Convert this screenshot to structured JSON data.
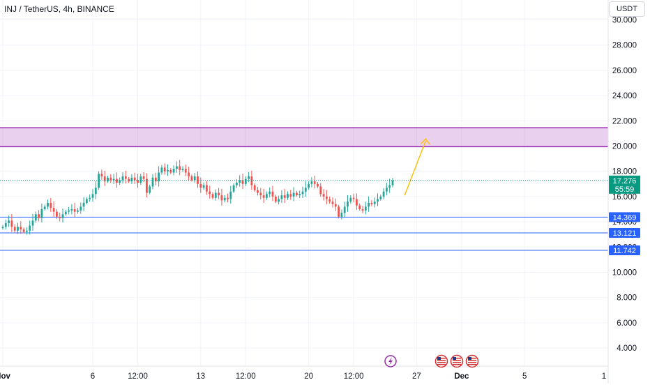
{
  "header": {
    "title": "INJ / TetherUS, 4h, BINANCE",
    "currency": "USDT"
  },
  "price_label": {
    "price": "17.276",
    "countdown": "55:59"
  },
  "chart_data": {
    "type": "candlestick",
    "symbol": "INJ / TetherUS",
    "interval": "4h",
    "exchange": "BINANCE",
    "y_axis": {
      "range": [
        3.0,
        30.5
      ],
      "ticks": [
        "30.000",
        "28.000",
        "26.000",
        "24.000",
        "22.000",
        "20.000",
        "18.000",
        "16.000",
        "14.000",
        "12.000",
        "10.000",
        "8.000",
        "6.000",
        "4.000"
      ],
      "tick_values": [
        30,
        28,
        26,
        24,
        22,
        20,
        18,
        16,
        14,
        12,
        10,
        8,
        6,
        4
      ]
    },
    "x_axis": {
      "labels": [
        "Nov",
        "6",
        "12:00",
        "13",
        "12:00",
        "20",
        "12:00",
        "27",
        "Dec",
        "5",
        "1"
      ],
      "label_positions_bars": [
        0,
        30,
        45,
        66,
        81,
        102,
        117,
        138,
        153,
        174,
        210
      ]
    },
    "last_price": 17.276,
    "resistance_zone": {
      "low": 19.95,
      "high": 21.45,
      "color": "#9c27b0"
    },
    "support_levels": [
      {
        "value": 14.369,
        "label": "14.369"
      },
      {
        "value": 13.121,
        "label": "13.121"
      },
      {
        "value": 11.742,
        "label": "11.742"
      }
    ],
    "projection": {
      "from_bar": 134,
      "from_price": 16.1,
      "to_bar": 141,
      "to_price": 20.4,
      "color": "#ffc107"
    },
    "colors": {
      "up": "#26a69a",
      "down": "#ef5350",
      "support": "#2962ff",
      "last_price": "#089981",
      "grid": "#f0f3fa"
    },
    "bars_4h": [
      13.6,
      13.9,
      14.1,
      13.6,
      13.3,
      13.6,
      13.4,
      13.2,
      13.3,
      13.7,
      14.1,
      14.6,
      14.3,
      15.0,
      15.2,
      15.5,
      15.1,
      14.8,
      14.4,
      14.3,
      14.6,
      14.8,
      14.9,
      15.0,
      14.8,
      14.9,
      15.2,
      15.5,
      15.8,
      15.9,
      16.2,
      16.7,
      17.8,
      17.6,
      17.2,
      17.5,
      17.3,
      17.4,
      17.1,
      17.3,
      17.6,
      17.4,
      17.2,
      17.5,
      17.3,
      17.1,
      17.6,
      17.4,
      16.3,
      16.8,
      17.5,
      17.2,
      17.9,
      18.3,
      18.0,
      18.1,
      17.9,
      18.2,
      18.4,
      18.1,
      18.2,
      17.9,
      17.6,
      17.3,
      17.6,
      17.0,
      16.7,
      16.9,
      16.4,
      16.2,
      15.9,
      16.3,
      16.1,
      15.7,
      15.9,
      15.8,
      16.4,
      16.9,
      17.1,
      17.3,
      17.0,
      17.4,
      17.6,
      16.9,
      16.5,
      16.3,
      16.1,
      15.9,
      16.2,
      16.4,
      16.0,
      15.6,
      15.8,
      16.1,
      15.9,
      16.2,
      16.0,
      16.3,
      16.1,
      16.2,
      16.4,
      16.7,
      17.0,
      17.2,
      17.0,
      16.8,
      16.2,
      16.0,
      15.8,
      15.6,
      15.4,
      15.2,
      14.4,
      14.7,
      15.2,
      15.6,
      15.9,
      15.8,
      15.3,
      15.0,
      14.9,
      15.2,
      15.5,
      15.4,
      15.6,
      15.8,
      16.0,
      16.4,
      16.7,
      16.9,
      17.276
    ]
  }
}
